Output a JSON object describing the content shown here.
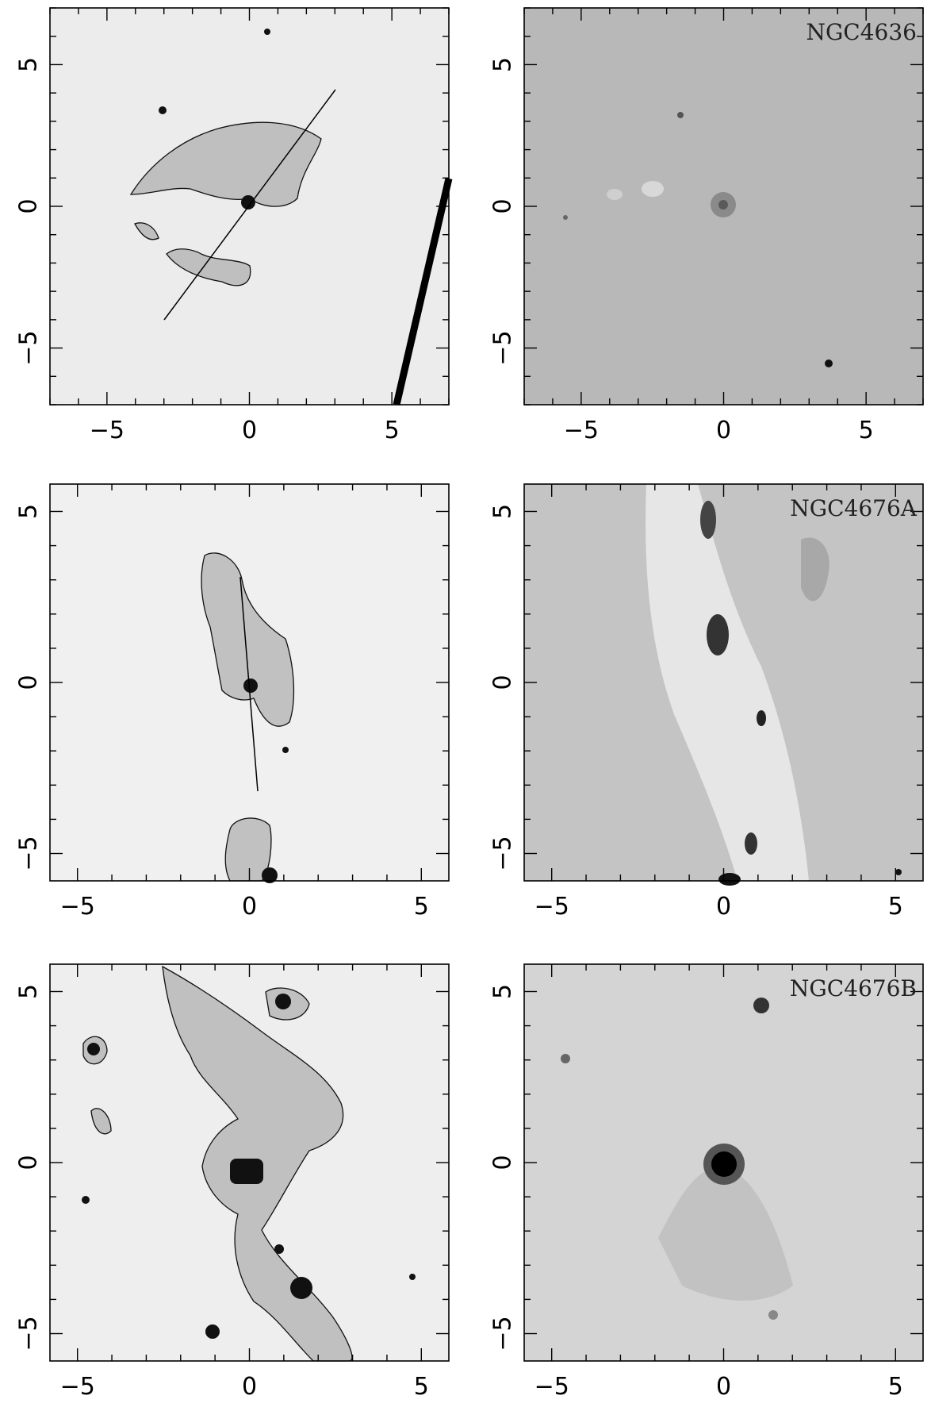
{
  "figure": {
    "panels": [
      {
        "id": "ngc4636-halpha",
        "side": "left",
        "galaxy_label": "",
        "x_ticks": [
          "−5",
          "0",
          "5"
        ],
        "y_ticks": [
          "5",
          "0",
          "−5"
        ],
        "range": [
          -7,
          7
        ],
        "background": "#ececec"
      },
      {
        "id": "ngc4636-continuum",
        "side": "right",
        "galaxy_label": "NGC4636",
        "x_ticks": [
          "−5",
          "0",
          "5"
        ],
        "y_ticks": [
          "5",
          "0",
          "−5"
        ],
        "range": [
          -7,
          7
        ],
        "background": "#b8b8b8"
      },
      {
        "id": "ngc4676a-halpha",
        "side": "left",
        "galaxy_label": "",
        "x_ticks": [
          "−5",
          "0",
          "5"
        ],
        "y_ticks": [
          "5",
          "0",
          "−5"
        ],
        "range": [
          -5.8,
          5.8
        ],
        "background": "#f0f0f0"
      },
      {
        "id": "ngc4676a-continuum",
        "side": "right",
        "galaxy_label": "NGC4676A",
        "x_ticks": [
          "−5",
          "0",
          "5"
        ],
        "y_ticks": [
          "5",
          "0",
          "−5"
        ],
        "range": [
          -5.8,
          5.8
        ],
        "background": "#c4c4c4"
      },
      {
        "id": "ngc4676b-halpha",
        "side": "left",
        "galaxy_label": "",
        "x_ticks": [
          "−5",
          "0",
          "5"
        ],
        "y_ticks": [
          "5",
          "0",
          "−5"
        ],
        "range": [
          -5.8,
          5.8
        ],
        "background": "#eeeeee"
      },
      {
        "id": "ngc4676b-continuum",
        "side": "right",
        "galaxy_label": "NGC4676B",
        "x_ticks": [
          "−5",
          "0",
          "5"
        ],
        "y_ticks": [
          "5",
          "0",
          "−5"
        ],
        "range": [
          -5.8,
          5.8
        ],
        "background": "#d4d4d4"
      }
    ]
  }
}
